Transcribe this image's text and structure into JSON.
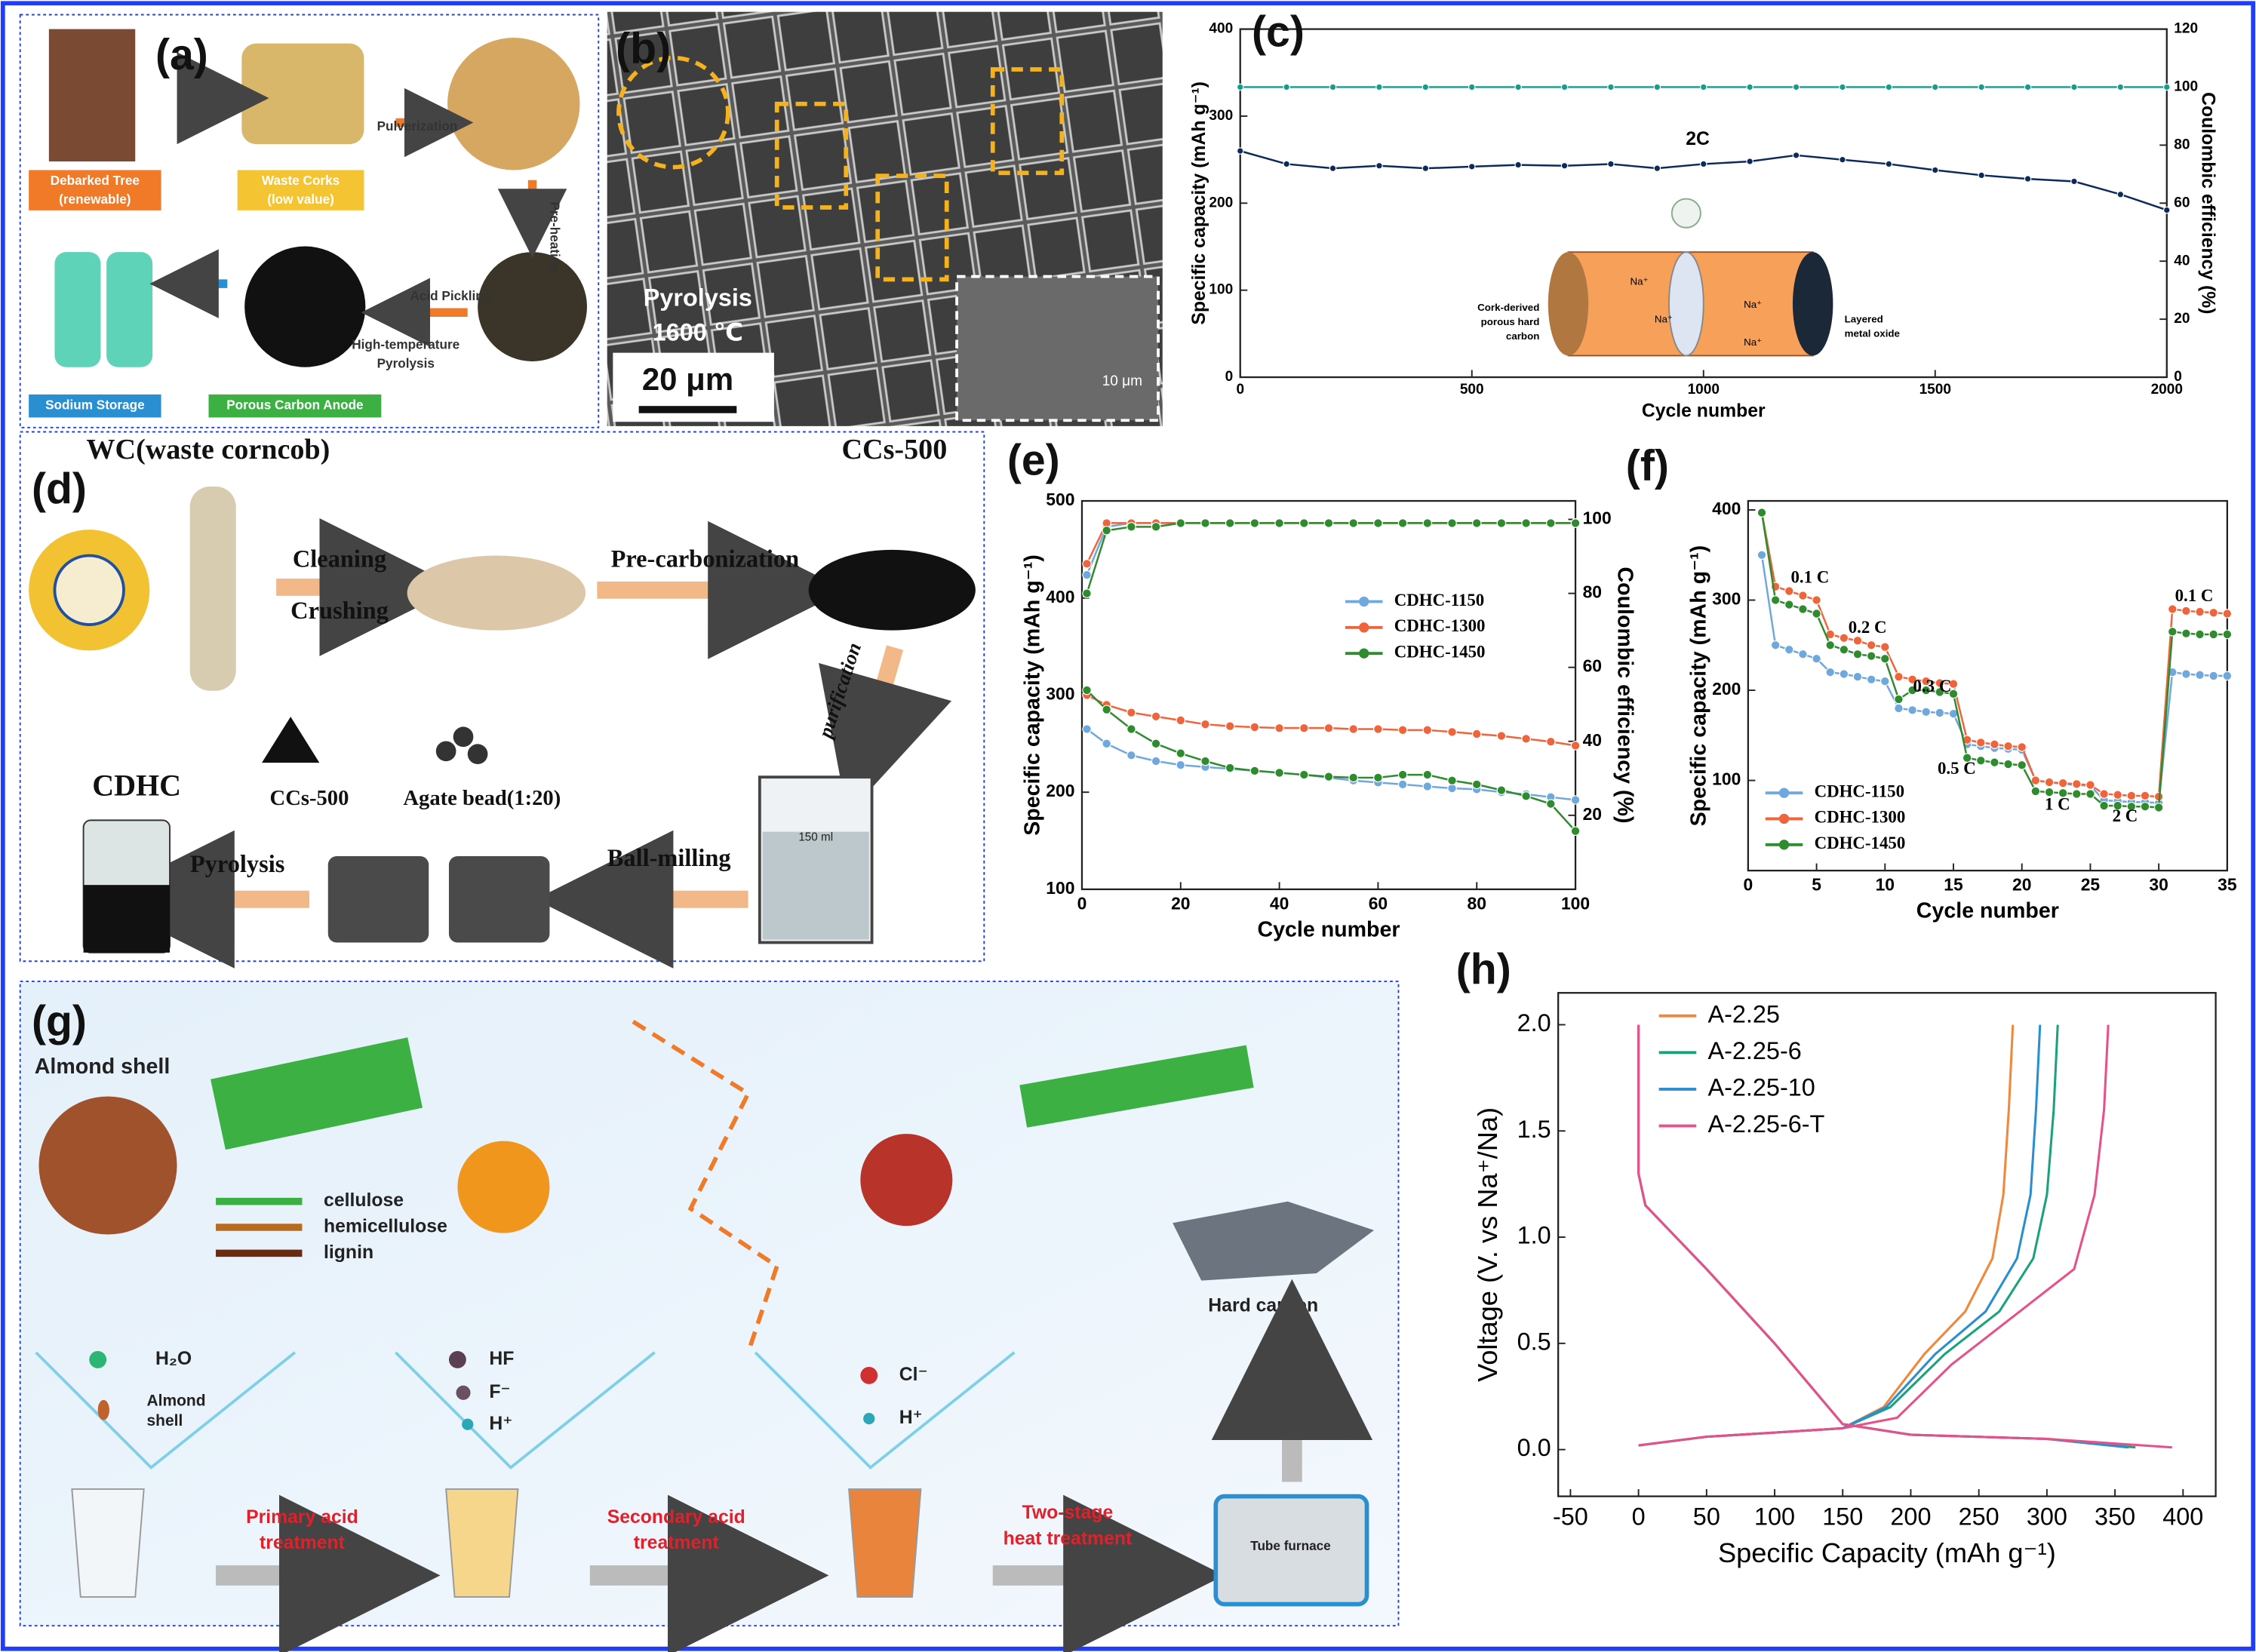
{
  "panels": {
    "a": {
      "label": "(a)",
      "debarked": [
        "Debarked Tree",
        "(renewable)"
      ],
      "corks": [
        "Waste Corks",
        "(low value)"
      ],
      "pulverization": "Pulverization",
      "preheating": "Pre-heating",
      "acid": "Acid Pickling",
      "pyrolysis": [
        "High-temperature",
        "Pyrolysis"
      ],
      "sodium": "Sodium Storage",
      "anode": "Porous Carbon Anode"
    },
    "b": {
      "label": "(b)",
      "process": [
        "Pyrolysis",
        "1600 ℃"
      ],
      "scale": "20 μm",
      "inset_scale": "10 μm"
    },
    "d": {
      "label": "(d)",
      "source": "WC(waste corncob)",
      "product": "CCs-500",
      "cleaning": "Cleaning",
      "crushing": "Crushing",
      "precarb": "Pre-carbonization",
      "purification": "purification",
      "ballmill": "Ball-milling",
      "pyrolysis": "Pyrolysis",
      "cdhc": "CDHC",
      "ccs": "CCs-500",
      "agate": "Agate bead(1:20)",
      "beaker": "150 ml"
    },
    "g": {
      "label": "(g)",
      "almond": "Almond shell",
      "cellulose": "cellulose",
      "hemicellulose": "hemicellulose",
      "lignin": "lignin",
      "water": "H₂O",
      "shell": [
        "Almond",
        "shell"
      ],
      "hf": "HF",
      "f": "F⁻",
      "h": "H⁺",
      "cl": "Cl⁻",
      "hard_carbon": "Hard carbon",
      "step1": [
        "Primary acid",
        "treatment"
      ],
      "step2": [
        "Secondary acid",
        "treatment"
      ],
      "step3": [
        "Two-stage",
        "heat treatment"
      ],
      "furnace": "Tube furnace"
    }
  },
  "chart_data": [
    {
      "type": "line",
      "panel_label": "(c)",
      "x_label": "Cycle number",
      "y_label": "Specific capacity (mAh g⁻¹)",
      "y2_label": "Coulombic efficiency (%)",
      "x": [
        0,
        100,
        200,
        300,
        400,
        500,
        600,
        700,
        800,
        900,
        1000,
        1100,
        1200,
        1300,
        1400,
        1500,
        1600,
        1700,
        1800,
        1900,
        2000
      ],
      "xlim": [
        0,
        2000
      ],
      "xticks": [
        0,
        500,
        1000,
        1500,
        2000
      ],
      "ylim": [
        0,
        400
      ],
      "yticks": [
        0,
        100,
        200,
        300,
        400
      ],
      "y2lim": [
        0,
        120
      ],
      "y2ticks": [
        0,
        20,
        40,
        60,
        80,
        100,
        120
      ],
      "markers": true,
      "series": [
        {
          "color": "#0d2a5c",
          "values": [
            260,
            245,
            240,
            243,
            240,
            242,
            244,
            243,
            245,
            240,
            245,
            248,
            255,
            250,
            245,
            238,
            232,
            228,
            225,
            210,
            192
          ]
        },
        {
          "color": "#1a9a8a",
          "axis": "y2",
          "values": [
            100,
            100,
            100,
            100,
            100,
            100,
            100,
            100,
            100,
            100,
            100,
            100,
            100,
            100,
            100,
            100,
            100,
            100,
            100,
            100,
            100
          ]
        }
      ],
      "annotations": [
        "2C"
      ],
      "inset": {
        "left": [
          "Cork-derived",
          "porous hard",
          "carbon"
        ],
        "right": [
          "Layered",
          "metal oxide"
        ],
        "ion": "Na⁺"
      }
    },
    {
      "type": "line",
      "panel_label": "(e)",
      "x_label": "Cycle number",
      "y_label": "Specific capacity (mAh g⁻¹)",
      "y2_label": "Coulombic efficiency (%)",
      "x": [
        1,
        5,
        10,
        15,
        20,
        25,
        30,
        35,
        40,
        45,
        50,
        55,
        60,
        65,
        70,
        75,
        80,
        85,
        90,
        95,
        100
      ],
      "xlim": [
        0,
        100
      ],
      "xticks": [
        0,
        20,
        40,
        60,
        80,
        100
      ],
      "ylim": [
        100,
        500
      ],
      "yticks": [
        100,
        200,
        300,
        400,
        500
      ],
      "y2lim": [
        0,
        105
      ],
      "y2ticks": [
        20,
        40,
        60,
        80,
        100
      ],
      "markers": true,
      "legend": "upper right",
      "series": [
        {
          "name": "CDHC-1150",
          "color": "#6fa8dc",
          "values": [
            265,
            250,
            238,
            232,
            228,
            226,
            224,
            222,
            220,
            218,
            215,
            212,
            210,
            208,
            206,
            204,
            203,
            200,
            198,
            195,
            192
          ]
        },
        {
          "name": "CDHC-1300",
          "color": "#f0643c",
          "values": [
            300,
            290,
            282,
            278,
            274,
            270,
            268,
            267,
            266,
            266,
            266,
            265,
            265,
            264,
            264,
            262,
            260,
            258,
            255,
            252,
            248
          ]
        },
        {
          "name": "CDHC-1450",
          "color": "#2e8b2e",
          "values": [
            305,
            285,
            265,
            250,
            240,
            232,
            225,
            222,
            220,
            218,
            216,
            215,
            215,
            218,
            218,
            212,
            208,
            202,
            196,
            188,
            160
          ]
        },
        {
          "color": "#6fa8dc",
          "axis": "y2",
          "values": [
            85,
            98,
            99,
            99,
            99,
            99,
            99,
            99,
            99,
            99,
            99,
            99,
            99,
            99,
            99,
            99,
            99,
            99,
            99,
            99,
            99
          ]
        },
        {
          "color": "#f0643c",
          "axis": "y2",
          "values": [
            88,
            99,
            99,
            99,
            99,
            99,
            99,
            99,
            99,
            99,
            99,
            99,
            99,
            99,
            99,
            99,
            99,
            99,
            99,
            99,
            99
          ]
        },
        {
          "color": "#2e8b2e",
          "axis": "y2",
          "values": [
            80,
            97,
            98,
            98,
            99,
            99,
            99,
            99,
            99,
            99,
            99,
            99,
            99,
            99,
            99,
            99,
            99,
            99,
            99,
            99,
            99
          ]
        }
      ]
    },
    {
      "type": "line",
      "panel_label": "(f)",
      "x_label": "Cycle number",
      "y_label": "Specific capacity (mAh g⁻¹)",
      "x": [
        1,
        2,
        3,
        4,
        5,
        6,
        7,
        8,
        9,
        10,
        11,
        12,
        13,
        14,
        15,
        16,
        17,
        18,
        19,
        20,
        21,
        22,
        23,
        24,
        25,
        26,
        27,
        28,
        29,
        30,
        31,
        32,
        33,
        34,
        35
      ],
      "xlim": [
        0,
        35
      ],
      "xticks": [
        0,
        5,
        10,
        15,
        20,
        25,
        30,
        35
      ],
      "ylim": [
        0,
        410
      ],
      "yticks": [
        100,
        200,
        300,
        400
      ],
      "markers": true,
      "legend": "lower left",
      "series": [
        {
          "name": "CDHC-1150",
          "color": "#6fa8dc",
          "values": [
            350,
            250,
            245,
            240,
            235,
            220,
            218,
            215,
            212,
            210,
            180,
            178,
            176,
            175,
            174,
            140,
            138,
            136,
            135,
            134,
            100,
            98,
            96,
            95,
            94,
            78,
            77,
            76,
            76,
            75,
            220,
            218,
            217,
            216,
            216
          ]
        },
        {
          "name": "CDHC-1300",
          "color": "#f0643c",
          "values": [
            397,
            315,
            310,
            305,
            300,
            262,
            258,
            255,
            250,
            248,
            215,
            212,
            210,
            208,
            207,
            145,
            142,
            140,
            138,
            137,
            100,
            98,
            97,
            96,
            95,
            85,
            84,
            83,
            83,
            82,
            290,
            288,
            287,
            286,
            285
          ]
        },
        {
          "name": "CDHC-1450",
          "color": "#2e8b2e",
          "values": [
            397,
            300,
            295,
            290,
            285,
            250,
            245,
            240,
            238,
            235,
            190,
            200,
            200,
            198,
            196,
            125,
            122,
            120,
            118,
            117,
            88,
            87,
            86,
            85,
            85,
            72,
            72,
            71,
            71,
            70,
            265,
            263,
            262,
            262,
            262
          ]
        }
      ],
      "annotations": [
        "0.1 C",
        "0.2 C",
        "0.3 C",
        "0.5 C",
        "1 C",
        "2 C",
        "0.1 C"
      ]
    },
    {
      "type": "line",
      "panel_label": "(h)",
      "x_label": "Specific Capacity (mAh g⁻¹)",
      "y_label": "Voltage (V. vs Na⁺/Na)",
      "xlim": [
        -59,
        424
      ],
      "xticks": [
        -50,
        0,
        50,
        100,
        150,
        200,
        250,
        300,
        350,
        400
      ],
      "ylim": [
        -0.22,
        2.15
      ],
      "yticks": [
        {
          "value": 0,
          "label": "0.0"
        },
        0.5,
        {
          "value": 1,
          "label": "1.0"
        },
        1.5,
        {
          "value": 2,
          "label": "2.0"
        }
      ],
      "markers": false,
      "legend": "upper left",
      "series": [
        {
          "name": "A-2.25",
          "color": "#f0883c",
          "x": [
            0,
            0,
            5,
            20,
            50,
            100,
            150,
            200,
            300,
            360,
            null,
            0,
            50,
            100,
            150,
            180,
            210,
            240,
            260,
            268,
            272,
            275
          ],
          "values": [
            2.0,
            1.3,
            1.15,
            1.05,
            0.85,
            0.5,
            0.12,
            0.07,
            0.05,
            0.01,
            null,
            0.02,
            0.06,
            0.08,
            0.1,
            0.2,
            0.45,
            0.65,
            0.9,
            1.2,
            1.6,
            2.0
          ]
        },
        {
          "name": "A-2.25-6",
          "color": "#1aa37a",
          "x": [
            0,
            0,
            5,
            20,
            50,
            100,
            150,
            200,
            300,
            365,
            null,
            0,
            50,
            100,
            150,
            185,
            225,
            265,
            290,
            300,
            305,
            308
          ],
          "values": [
            2.0,
            1.3,
            1.15,
            1.05,
            0.85,
            0.5,
            0.12,
            0.07,
            0.05,
            0.01,
            null,
            0.02,
            0.06,
            0.08,
            0.1,
            0.2,
            0.45,
            0.65,
            0.9,
            1.2,
            1.6,
            2.0
          ]
        },
        {
          "name": "A-2.25-10",
          "color": "#2a8fd0",
          "x": [
            0,
            0,
            5,
            20,
            50,
            100,
            150,
            200,
            300,
            360,
            null,
            0,
            50,
            100,
            150,
            182,
            218,
            255,
            278,
            288,
            292,
            295
          ],
          "values": [
            2.0,
            1.3,
            1.15,
            1.05,
            0.85,
            0.5,
            0.12,
            0.07,
            0.05,
            0.01,
            null,
            0.02,
            0.06,
            0.08,
            0.1,
            0.2,
            0.45,
            0.65,
            0.9,
            1.2,
            1.6,
            2.0
          ]
        },
        {
          "name": "A-2.25-6-T",
          "color": "#e8508a",
          "x": [
            0,
            0,
            5,
            20,
            50,
            100,
            150,
            200,
            300,
            392,
            null,
            0,
            50,
            100,
            150,
            190,
            230,
            280,
            320,
            335,
            342,
            345
          ],
          "values": [
            2.0,
            1.3,
            1.15,
            1.05,
            0.85,
            0.5,
            0.12,
            0.07,
            0.05,
            0.01,
            null,
            0.02,
            0.06,
            0.08,
            0.1,
            0.15,
            0.4,
            0.65,
            0.85,
            1.2,
            1.6,
            2.0
          ]
        }
      ]
    }
  ]
}
